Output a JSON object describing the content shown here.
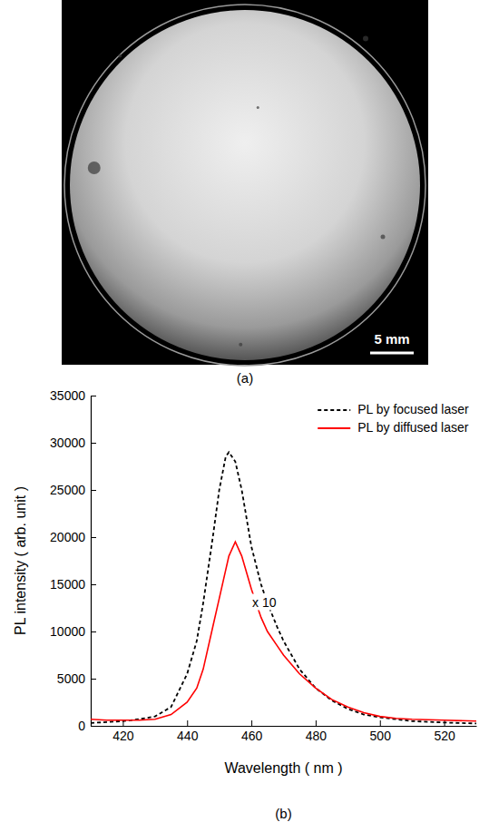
{
  "figure": {
    "panels": [
      {
        "label": "(a)",
        "scale_bar": "5 mm"
      },
      {
        "label": "(b)"
      }
    ]
  },
  "chart_data": {
    "type": "line",
    "x_label": "Wavelength ( nm )",
    "y_label": "PL intensity ( arb. unit )",
    "x": [
      410,
      415,
      420,
      425,
      430,
      435,
      440,
      443,
      445,
      448,
      450,
      452,
      453,
      455,
      457,
      460,
      463,
      465,
      468,
      470,
      475,
      480,
      485,
      490,
      495,
      500,
      505,
      510,
      520,
      530
    ],
    "series": [
      {
        "name": "PL by focused laser",
        "color": "#000000",
        "line_style": "dashed",
        "values": [
          300,
          400,
          500,
          700,
          1000,
          2000,
          5500,
          9000,
          13000,
          20000,
          25000,
          28500,
          29000,
          28000,
          25000,
          19000,
          15000,
          13000,
          10500,
          9000,
          6000,
          4000,
          2700,
          1800,
          1200,
          900,
          700,
          500,
          350,
          250
        ]
      },
      {
        "name": "PL by diffused laser",
        "color": "#ff0000",
        "line_style": "solid",
        "values": [
          700,
          600,
          600,
          600,
          700,
          1200,
          2500,
          4000,
          6000,
          10500,
          13500,
          16500,
          18000,
          19500,
          18000,
          14500,
          11500,
          10000,
          8500,
          7500,
          5500,
          4000,
          2800,
          2000,
          1400,
          1000,
          800,
          700,
          600,
          500
        ]
      }
    ],
    "xlim": [
      410,
      530
    ],
    "ylim": [
      0,
      35000
    ],
    "xticks": [
      420,
      440,
      460,
      480,
      500,
      520
    ],
    "yticks": [
      0,
      5000,
      10000,
      15000,
      20000,
      25000,
      30000,
      35000
    ],
    "legend": "upper right",
    "annotations": [
      {
        "text": "x 10",
        "x": 464,
        "y": 13000
      }
    ]
  }
}
